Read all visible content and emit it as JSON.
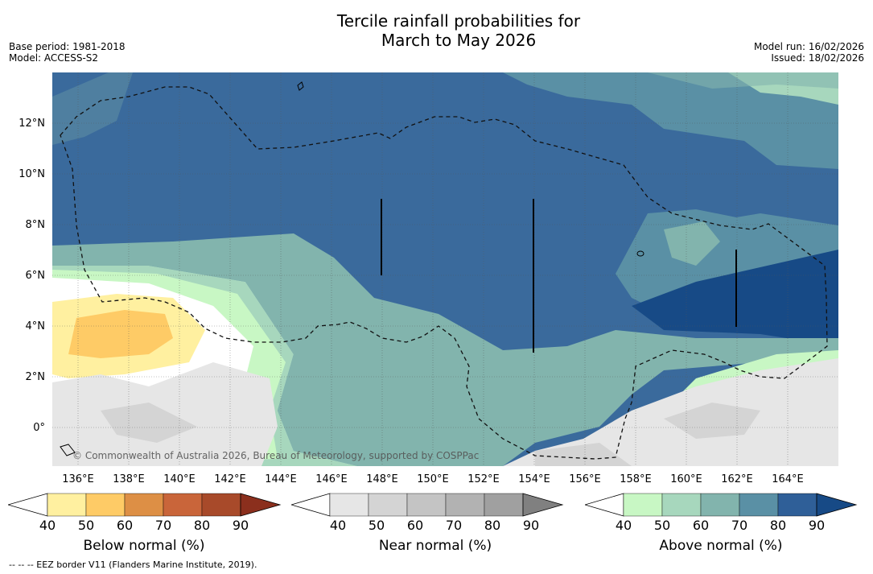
{
  "title_line1": "Tercile rainfall probabilities for",
  "title_line2": "March to May 2026",
  "meta": {
    "base_period": "Base period: 1981-2018",
    "model": "Model: ACCESS-S2",
    "model_run": "Model run: 16/02/2026",
    "issued": "Issued: 18/02/2026"
  },
  "map": {
    "lat_labels": [
      "12°N",
      "10°N",
      "8°N",
      "6°N",
      "4°N",
      "2°N",
      "0°"
    ],
    "lon_labels": [
      "136°E",
      "138°E",
      "140°E",
      "142°E",
      "144°E",
      "146°E",
      "148°E",
      "150°E",
      "152°E",
      "154°E",
      "156°E",
      "158°E",
      "160°E",
      "162°E",
      "164°E"
    ],
    "copyright": "© Commonwealth of Australia 2026, Bureau of Meteorology, supported by COSPPac"
  },
  "colorbars": [
    {
      "title": "Below normal (%)",
      "ticks": [
        "40",
        "50",
        "60",
        "70",
        "80",
        "90"
      ],
      "colors": [
        "#fff0a0",
        "#fecb66",
        "#dd8f45",
        "#c9653a",
        "#a84a2a"
      ],
      "arrow": "#8b2f1d"
    },
    {
      "title": "Near normal (%)",
      "ticks": [
        "40",
        "50",
        "60",
        "70",
        "80",
        "90"
      ],
      "colors": [
        "#e6e6e6",
        "#d4d4d4",
        "#c4c4c4",
        "#b2b2b2",
        "#a0a0a0"
      ],
      "arrow": "#808080"
    },
    {
      "title": "Above normal (%)",
      "ticks": [
        "40",
        "50",
        "60",
        "70",
        "80",
        "90"
      ],
      "colors": [
        "#c8f7c4",
        "#a7d7bd",
        "#82b4ad",
        "#5a90a5",
        "#2f5f98"
      ],
      "arrow": "#174a86"
    }
  ],
  "footnote": "--  --  -- EEZ border V11 (Flanders Marine Institute, 2019)."
}
